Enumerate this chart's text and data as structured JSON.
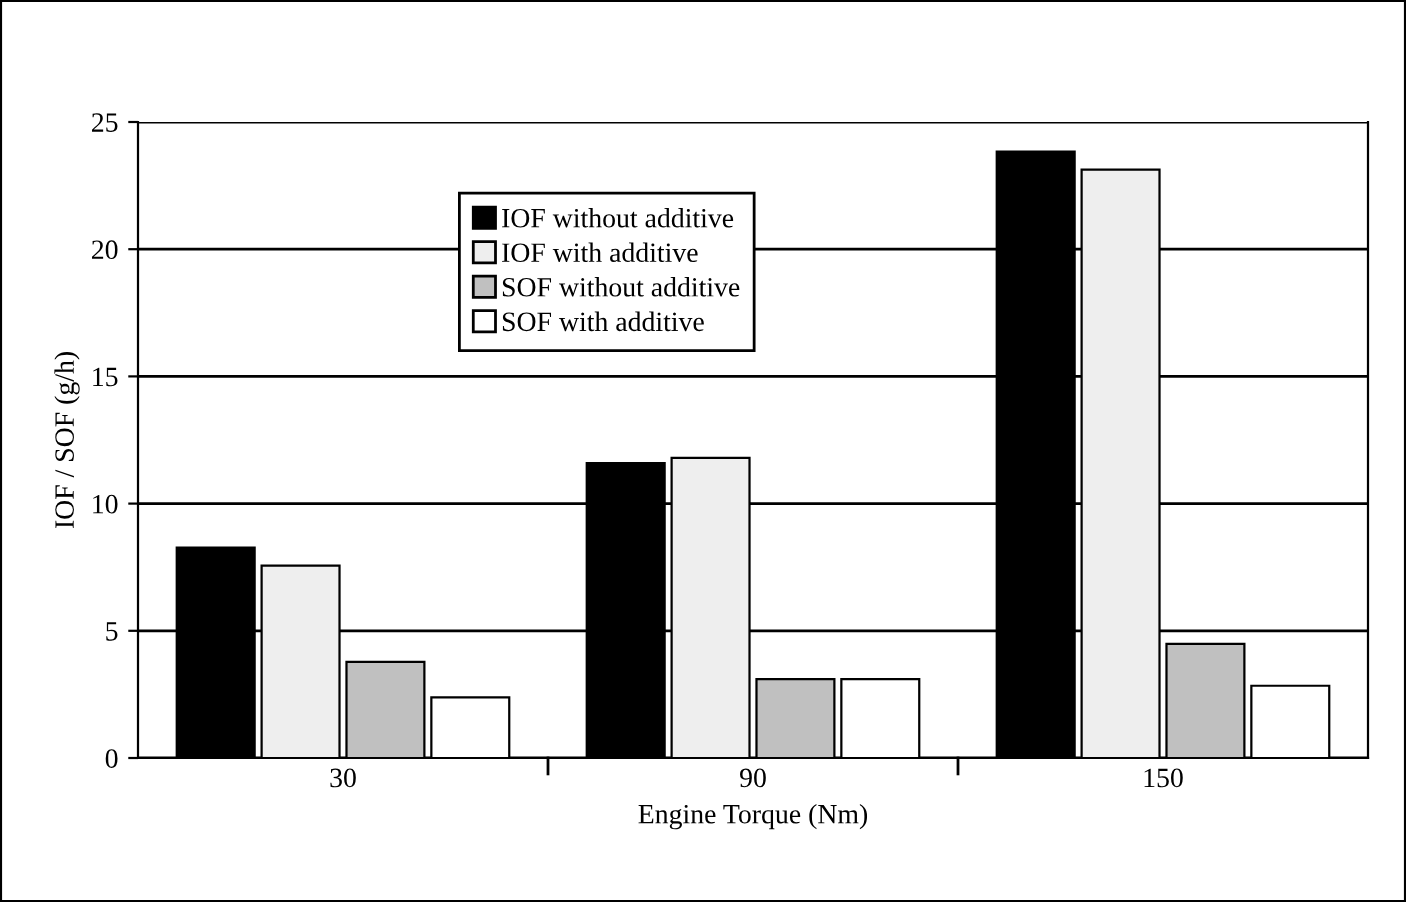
{
  "chart_data": {
    "type": "bar",
    "xlabel": "Engine Torque (Nm)",
    "ylabel": "IOF / SOF (g/h)",
    "categories": [
      "30",
      "90",
      "150"
    ],
    "series": [
      {
        "name": "IOF without additive",
        "color": "#000000",
        "values": [
          8.27,
          11.59,
          23.84
        ]
      },
      {
        "name": "IOF with additive",
        "color": "#eeeeee",
        "values": [
          7.56,
          11.8,
          23.13
        ]
      },
      {
        "name": "SOF without additive",
        "color": "#c0c0c0",
        "values": [
          3.78,
          3.1,
          4.49
        ]
      },
      {
        "name": "SOF with additive",
        "color": "#ffffff",
        "values": [
          2.38,
          3.1,
          2.84
        ]
      }
    ],
    "ylim": [
      0,
      25
    ],
    "yticks": [
      0,
      5,
      10,
      15,
      20,
      25
    ],
    "grid": "y",
    "legend": "top left"
  }
}
